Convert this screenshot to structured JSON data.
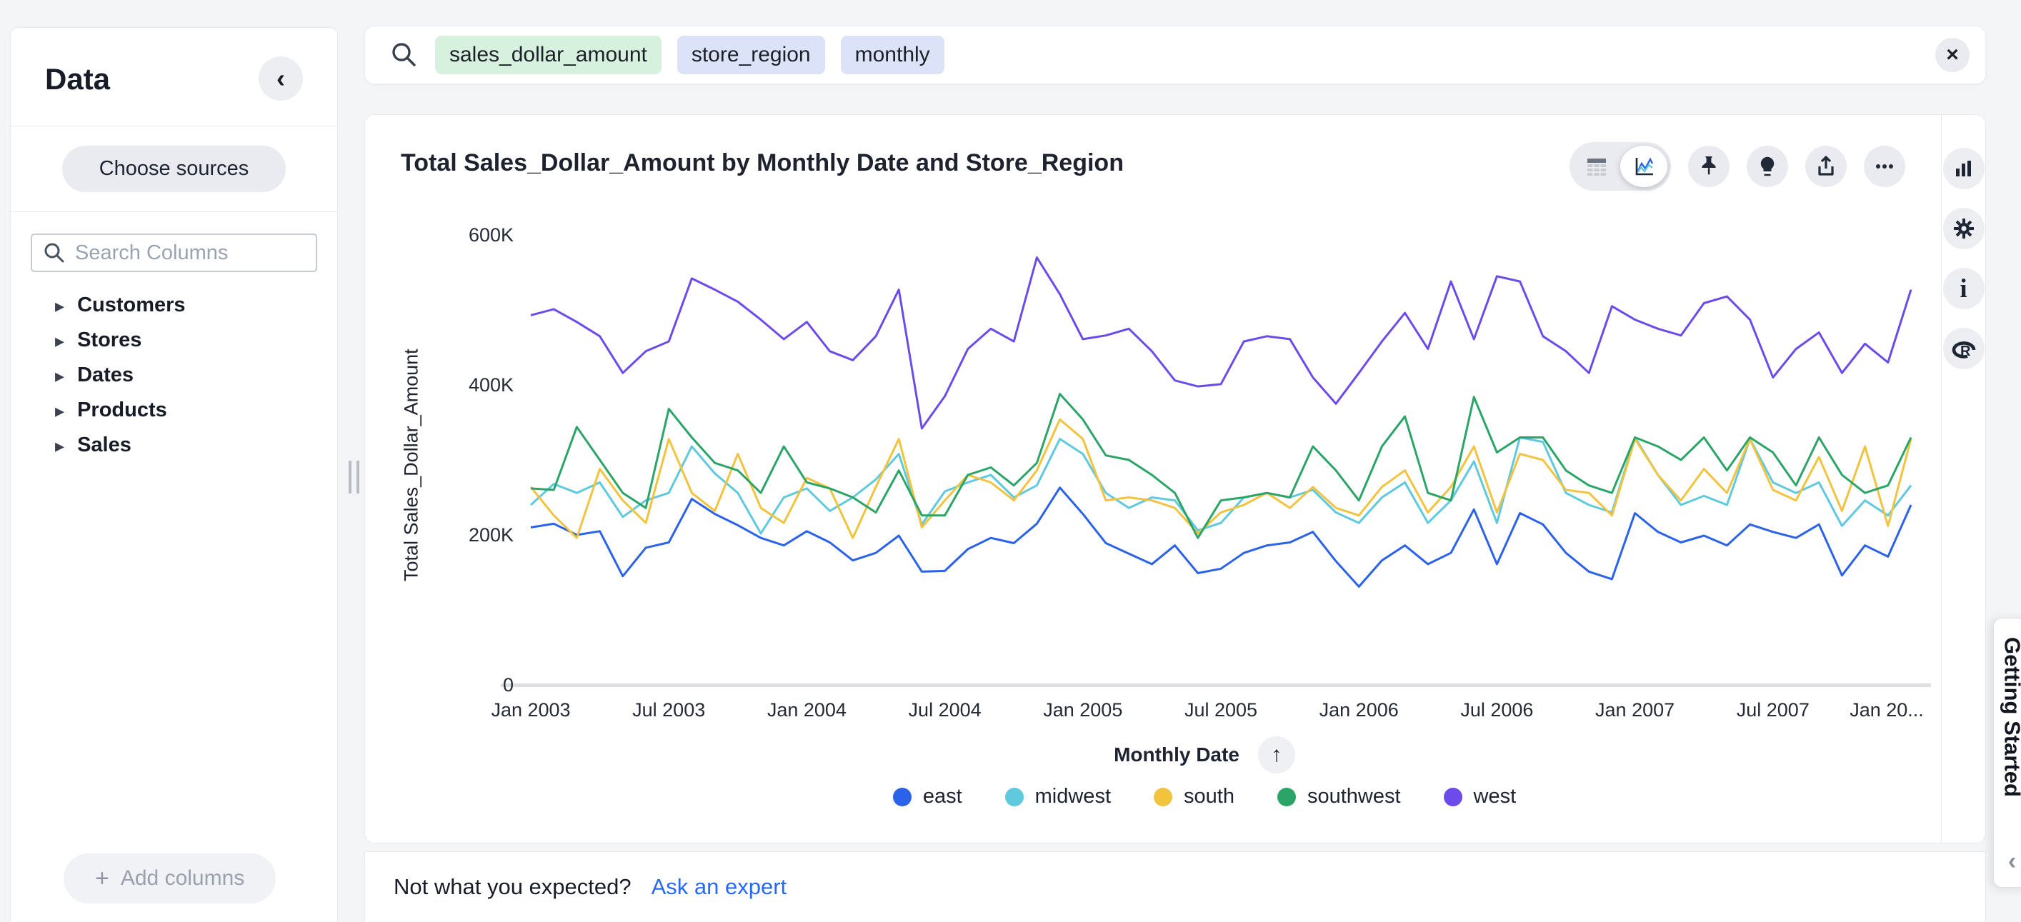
{
  "sidebar": {
    "title": "Data",
    "collapse_icon": "‹",
    "choose_sources_label": "Choose sources",
    "search_placeholder": "Search Columns",
    "tree": [
      {
        "label": "Customers"
      },
      {
        "label": "Stores"
      },
      {
        "label": "Dates"
      },
      {
        "label": "Products"
      },
      {
        "label": "Sales"
      }
    ],
    "add_columns_label": "Add columns",
    "add_columns_plus": "+"
  },
  "search_bar": {
    "tokens": [
      {
        "label": "sales_dollar_amount",
        "type": "measure"
      },
      {
        "label": "store_region",
        "type": "attribute"
      },
      {
        "label": "monthly",
        "type": "attribute"
      }
    ],
    "close_icon": "×"
  },
  "footer": {
    "question": "Not what you expected?",
    "link_label": "Ask an expert"
  },
  "getting_started": {
    "label": "Getting Started",
    "collapse_icon": "‹"
  },
  "axis_sort_icon": "↑",
  "chart_data": {
    "type": "line",
    "title": "Total Sales_Dollar_Amount by Monthly Date and Store_Region",
    "xlabel": "Monthly Date",
    "ylabel": "Total Sales_Dollar_Amount",
    "x_range": [
      "Jan 2003",
      "Jan 2008"
    ],
    "x_unit": "month",
    "points_per_series": 61,
    "x_tick_labels": [
      "Jan 2003",
      "Jul 2003",
      "Jan 2004",
      "Jul 2004",
      "Jan 2005",
      "Jul 2005",
      "Jan 2006",
      "Jul 2006",
      "Jan 2007",
      "Jul 2007",
      "Jan 20..."
    ],
    "y_ticks": [
      {
        "label": "0",
        "value_k": 0
      },
      {
        "label": "200K",
        "value_k": 200
      },
      {
        "label": "400K",
        "value_k": 400
      },
      {
        "label": "600K",
        "value_k": 600
      }
    ],
    "ylim_k": [
      0,
      600
    ],
    "values_unit": "thousand dollars (K)",
    "grid": false,
    "legend_position": "bottom",
    "series": [
      {
        "name": "east",
        "color": "#2a62e9",
        "values_k": [
          210,
          215,
          200,
          205,
          145,
          183,
          190,
          248,
          228,
          213,
          196,
          186,
          205,
          190,
          166,
          176,
          199,
          151,
          152,
          181,
          196,
          189,
          215,
          263,
          228,
          189,
          175,
          161,
          186,
          149,
          155,
          176,
          186,
          190,
          204,
          165,
          131,
          166,
          186,
          161,
          176,
          234,
          161,
          229,
          214,
          176,
          151,
          141,
          229,
          204,
          190,
          199,
          186,
          214,
          204,
          196,
          214,
          146,
          186,
          171,
          240
        ]
      },
      {
        "name": "midwest",
        "color": "#5fc9de",
        "values_k": [
          240,
          268,
          256,
          270,
          224,
          246,
          256,
          318,
          282,
          256,
          202,
          250,
          262,
          232,
          250,
          274,
          308,
          214,
          258,
          270,
          280,
          250,
          266,
          328,
          308,
          256,
          236,
          250,
          246,
          206,
          216,
          250,
          256,
          250,
          260,
          230,
          216,
          250,
          270,
          216,
          246,
          298,
          216,
          330,
          324,
          256,
          240,
          230,
          330,
          280,
          240,
          252,
          240,
          328,
          270,
          256,
          270,
          212,
          246,
          226,
          266
        ]
      },
      {
        "name": "south",
        "color": "#f2c33f",
        "values_k": [
          264,
          226,
          196,
          288,
          246,
          216,
          328,
          256,
          232,
          308,
          236,
          216,
          276,
          262,
          196,
          264,
          328,
          210,
          246,
          280,
          270,
          246,
          286,
          354,
          328,
          246,
          250,
          246,
          236,
          202,
          230,
          240,
          256,
          236,
          264,
          236,
          226,
          264,
          286,
          230,
          264,
          318,
          230,
          308,
          300,
          260,
          256,
          226,
          328,
          280,
          246,
          288,
          256,
          328,
          260,
          246,
          304,
          232,
          318,
          212,
          328
        ]
      },
      {
        "name": "southwest",
        "color": "#2ba567",
        "values_k": [
          262,
          260,
          344,
          300,
          256,
          236,
          368,
          330,
          296,
          286,
          256,
          318,
          270,
          262,
          250,
          230,
          286,
          226,
          226,
          280,
          290,
          266,
          296,
          388,
          354,
          306,
          300,
          280,
          256,
          196,
          246,
          250,
          256,
          250,
          318,
          286,
          246,
          318,
          358,
          256,
          246,
          384,
          310,
          330,
          330,
          286,
          266,
          256,
          330,
          318,
          300,
          330,
          286,
          330,
          310,
          266,
          330,
          280,
          256,
          266,
          330
        ]
      },
      {
        "name": "west",
        "color": "#6c4bea",
        "values_k": [
          493,
          501,
          484,
          465,
          416,
          445,
          458,
          542,
          527,
          511,
          487,
          461,
          484,
          445,
          433,
          465,
          527,
          342,
          385,
          448,
          475,
          458,
          570,
          521,
          461,
          466,
          475,
          445,
          406,
          398,
          401,
          458,
          465,
          461,
          410,
          375,
          416,
          458,
          496,
          448,
          538,
          461,
          545,
          538,
          465,
          445,
          416,
          505,
          487,
          475,
          466,
          509,
          518,
          487,
          410,
          448,
          470,
          416,
          455,
          430,
          527
        ]
      }
    ]
  }
}
